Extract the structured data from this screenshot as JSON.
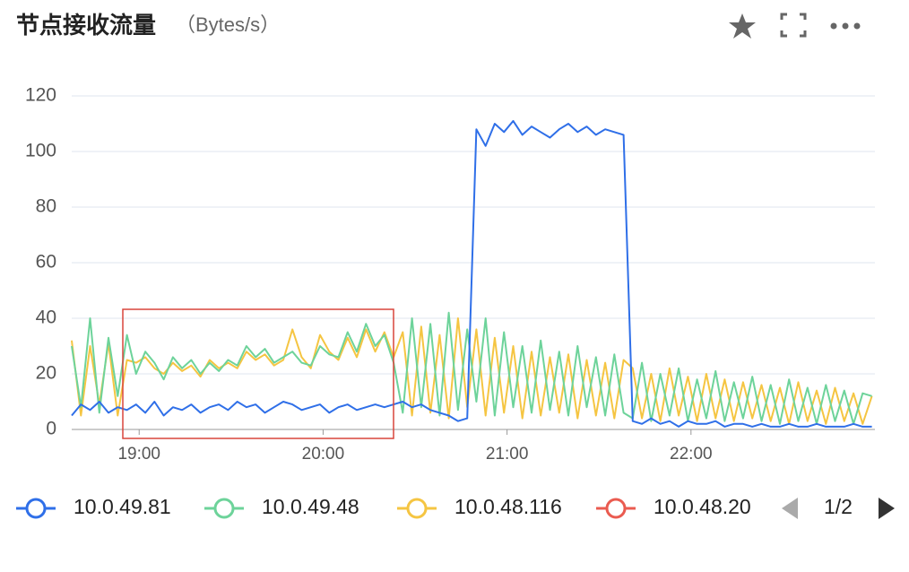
{
  "chart_data": {
    "type": "line",
    "title": "节点接收流量",
    "unit": "（Bytes/s）",
    "x": [
      1118,
      1121,
      1124,
      1127,
      1130,
      1133,
      1136,
      1139,
      1142,
      1145,
      1148,
      1151,
      1154,
      1157,
      1160,
      1163,
      1166,
      1169,
      1172,
      1175,
      1178,
      1181,
      1184,
      1187,
      1190,
      1193,
      1196,
      1199,
      1202,
      1205,
      1208,
      1211,
      1214,
      1217,
      1220,
      1223,
      1226,
      1229,
      1232,
      1235,
      1238,
      1241,
      1244,
      1247,
      1250,
      1253,
      1256,
      1259,
      1262,
      1265,
      1268,
      1271,
      1274,
      1277,
      1280,
      1283,
      1286,
      1289,
      1292,
      1295,
      1298,
      1301,
      1304,
      1307,
      1310,
      1313,
      1316,
      1319,
      1322,
      1325,
      1328,
      1331,
      1334,
      1337,
      1340,
      1343,
      1346,
      1349,
      1352,
      1355,
      1358,
      1361,
      1364,
      1367,
      1370,
      1373,
      1376,
      1379
    ],
    "xlim": [
      1118,
      1380
    ],
    "xticks": [
      {
        "value": 1140,
        "label": "19:00"
      },
      {
        "value": 1200,
        "label": "20:00"
      },
      {
        "value": 1260,
        "label": "21:00"
      },
      {
        "value": 1320,
        "label": "22:00"
      }
    ],
    "ylim": [
      0,
      120
    ],
    "yticks": [
      0,
      20,
      40,
      60,
      80,
      100,
      120
    ],
    "grid": true,
    "series": [
      {
        "name": "10.0.49.81",
        "color": "#2f6fe8",
        "values": [
          5,
          9,
          7,
          10,
          6,
          8,
          7,
          9,
          6,
          10,
          5,
          8,
          7,
          9,
          6,
          8,
          9,
          7,
          10,
          8,
          9,
          6,
          8,
          10,
          9,
          7,
          8,
          9,
          6,
          8,
          9,
          7,
          8,
          9,
          8,
          9,
          10,
          8,
          9,
          7,
          6,
          5,
          3,
          4,
          108,
          102,
          110,
          107,
          111,
          106,
          109,
          107,
          105,
          108,
          110,
          107,
          109,
          106,
          108,
          107,
          106,
          3,
          2,
          4,
          2,
          3,
          1,
          3,
          2,
          2,
          3,
          1,
          2,
          2,
          1,
          2,
          1,
          1,
          2,
          1,
          1,
          2,
          1,
          1,
          1,
          2,
          1,
          1
        ]
      },
      {
        "name": "10.0.49.48",
        "color": "#6dd39a",
        "values": [
          30,
          8,
          40,
          6,
          33,
          12,
          34,
          20,
          28,
          24,
          18,
          26,
          22,
          25,
          20,
          24,
          21,
          25,
          23,
          30,
          26,
          29,
          24,
          26,
          28,
          24,
          23,
          30,
          27,
          26,
          35,
          28,
          38,
          30,
          34,
          24,
          6,
          40,
          8,
          38,
          5,
          42,
          7,
          36,
          10,
          40,
          5,
          35,
          8,
          30,
          6,
          32,
          7,
          28,
          5,
          30,
          8,
          26,
          5,
          27,
          6,
          4,
          24,
          3,
          20,
          5,
          22,
          3,
          18,
          4,
          21,
          3,
          17,
          4,
          19,
          3,
          16,
          2,
          18,
          3,
          15,
          2,
          16,
          3,
          14,
          2,
          13,
          12
        ]
      },
      {
        "name": "10.0.48.116",
        "color": "#f5c542",
        "values": [
          32,
          5,
          30,
          9,
          31,
          5,
          25,
          24,
          26,
          22,
          20,
          24,
          21,
          23,
          19,
          25,
          22,
          24,
          22,
          28,
          25,
          27,
          23,
          25,
          36,
          26,
          22,
          34,
          28,
          25,
          33,
          26,
          36,
          28,
          35,
          26,
          35,
          5,
          37,
          6,
          34,
          4,
          40,
          8,
          36,
          5,
          33,
          6,
          30,
          4,
          28,
          5,
          26,
          6,
          27,
          4,
          25,
          5,
          24,
          4,
          25,
          22,
          4,
          20,
          3,
          22,
          5,
          19,
          3,
          20,
          4,
          18,
          3,
          17,
          4,
          16,
          3,
          15,
          2,
          17,
          3,
          14,
          2,
          15,
          3,
          13,
          2,
          12
        ]
      },
      {
        "name": "10.0.48.20",
        "color": "#ea5b50",
        "values": [
          null,
          null,
          null,
          null,
          null,
          null,
          null,
          null,
          null,
          null,
          null,
          null,
          null,
          null,
          null,
          null,
          null,
          null,
          null,
          null,
          null,
          null,
          null,
          null,
          null,
          null,
          null,
          null,
          null,
          null,
          null,
          null,
          null,
          null,
          null,
          null,
          null,
          null,
          null,
          null,
          null,
          null,
          null,
          null,
          null,
          null,
          null,
          null,
          null,
          null,
          null,
          null,
          null,
          null,
          null,
          null,
          null,
          null,
          null,
          null,
          null,
          null,
          null,
          null,
          null,
          null,
          null,
          null,
          null,
          null,
          null,
          null,
          null,
          null,
          null,
          null,
          null,
          null,
          null,
          null,
          null,
          null,
          null,
          null,
          null,
          null,
          null,
          null
        ]
      }
    ],
    "legend_page": "1/2"
  }
}
